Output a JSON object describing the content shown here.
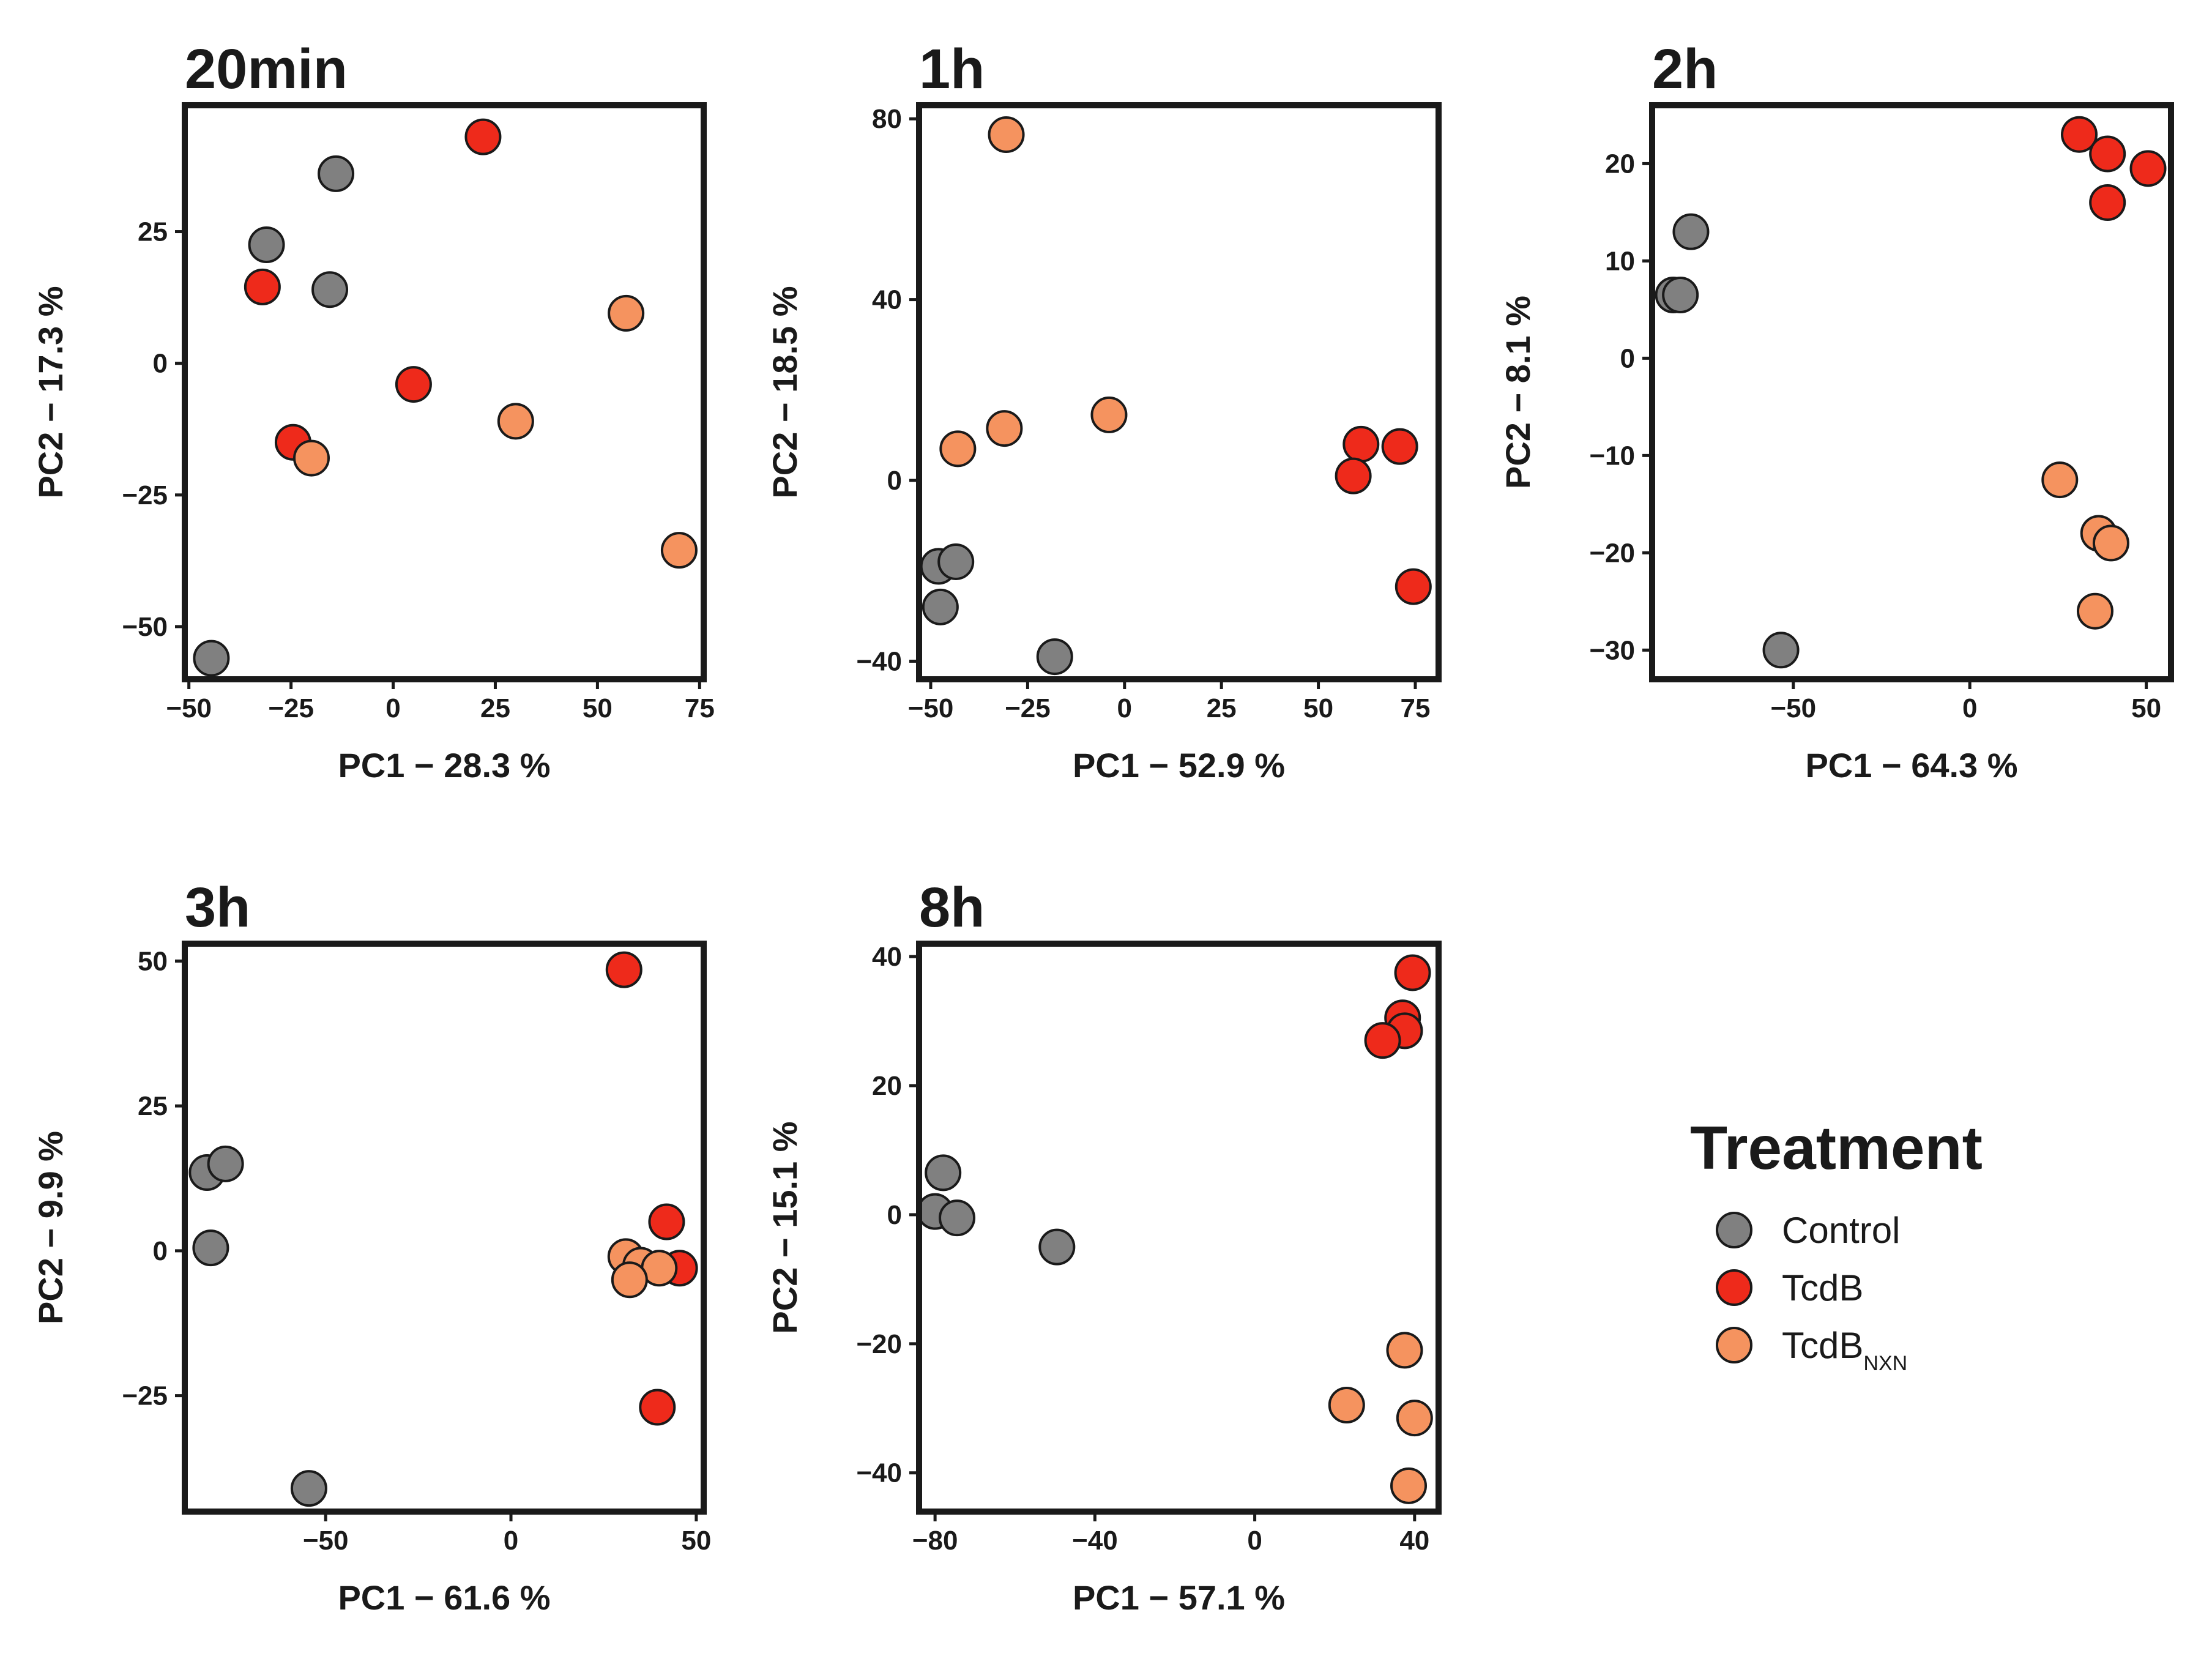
{
  "colors": {
    "Control": "#808080",
    "TcdB": "#ee2a1b",
    "TcdB_NXN": "#f5935f",
    "outline": "#1a1a1a"
  },
  "legend": {
    "title": "Treatment",
    "entries": [
      {
        "group": "Control",
        "label": "Control",
        "sub": ""
      },
      {
        "group": "TcdB",
        "label": "TcdB",
        "sub": ""
      },
      {
        "group": "TcdB_NXN",
        "label": "TcdB",
        "sub": "NXN"
      }
    ]
  },
  "chart_data": [
    {
      "type": "scatter",
      "title": "20min",
      "xlabel": "PC1 − 28.3 %",
      "ylabel": "PC2 − 17.3 %",
      "xlim": [
        -51,
        76
      ],
      "ylim": [
        -60,
        49
      ],
      "xticks": [
        -50,
        -25,
        0,
        25,
        50,
        75
      ],
      "xtick_labels": [
        "−50",
        "−25",
        "0",
        "25",
        "50",
        "75"
      ],
      "yticks": [
        -50,
        -25,
        0,
        25
      ],
      "ytick_labels": [
        "−50",
        "−25",
        "0",
        "25"
      ],
      "series": [
        {
          "name": "Control",
          "points": [
            [
              -31,
              22.5
            ],
            [
              -14,
              36
            ],
            [
              -15.5,
              14
            ],
            [
              -44.5,
              -56
            ]
          ]
        },
        {
          "name": "TcdB",
          "points": [
            [
              22,
              43
            ],
            [
              -32,
              14.5
            ],
            [
              5,
              -4
            ],
            [
              -24.5,
              -15
            ]
          ]
        },
        {
          "name": "TcdB_NXN",
          "points": [
            [
              57,
              9.5
            ],
            [
              30,
              -11
            ],
            [
              -20,
              -18
            ],
            [
              70,
              -35.5
            ]
          ]
        }
      ]
    },
    {
      "type": "scatter",
      "title": "1h",
      "xlabel": "PC1 − 52.9 %",
      "ylabel": "PC2 − 18.5 %",
      "xlim": [
        -53,
        81
      ],
      "ylim": [
        -44,
        83
      ],
      "xticks": [
        -50,
        -25,
        0,
        25,
        50,
        75
      ],
      "xtick_labels": [
        "−50",
        "−25",
        "0",
        "25",
        "50",
        "75"
      ],
      "yticks": [
        -40,
        0,
        40,
        80
      ],
      "ytick_labels": [
        "−40",
        "0",
        "40",
        "80"
      ],
      "series": [
        {
          "name": "Control",
          "points": [
            [
              -48,
              -19
            ],
            [
              -43.5,
              -18
            ],
            [
              -47.5,
              -28
            ],
            [
              -18,
              -39
            ]
          ]
        },
        {
          "name": "TcdB",
          "points": [
            [
              61,
              8
            ],
            [
              71,
              7.5
            ],
            [
              59,
              1
            ],
            [
              74.5,
              -23.5
            ]
          ]
        },
        {
          "name": "TcdB_NXN",
          "points": [
            [
              -30.5,
              76.5
            ],
            [
              -31,
              11.5
            ],
            [
              -4,
              14.5
            ],
            [
              -43,
              7
            ]
          ]
        }
      ]
    },
    {
      "type": "scatter",
      "title": "2h",
      "xlabel": "PC1 − 64.3 %",
      "ylabel": "PC2 − 8.1 %",
      "xlim": [
        -90,
        57
      ],
      "ylim": [
        -33,
        26
      ],
      "xticks": [
        -50,
        0,
        50
      ],
      "xtick_labels": [
        "−50",
        "0",
        "50"
      ],
      "yticks": [
        -30,
        -20,
        -10,
        0,
        10,
        20
      ],
      "ytick_labels": [
        "−30",
        "−20",
        "−10",
        "0",
        "10",
        "20"
      ],
      "series": [
        {
          "name": "Control",
          "points": [
            [
              -79,
              13
            ],
            [
              -84,
              6.5
            ],
            [
              -82,
              6.5
            ],
            [
              -53.5,
              -30
            ]
          ]
        },
        {
          "name": "TcdB",
          "points": [
            [
              31,
              23
            ],
            [
              39,
              21
            ],
            [
              50.5,
              19.5
            ],
            [
              39,
              16
            ]
          ]
        },
        {
          "name": "TcdB_NXN",
          "points": [
            [
              25.5,
              -12.5
            ],
            [
              36.5,
              -18
            ],
            [
              40,
              -19
            ],
            [
              35.5,
              -26
            ]
          ]
        }
      ]
    },
    {
      "type": "scatter",
      "title": "3h",
      "xlabel": "PC1 − 61.6 %",
      "ylabel": "PC2 − 9.9 %",
      "xlim": [
        -88,
        52
      ],
      "ylim": [
        -45,
        53
      ],
      "xticks": [
        -50,
        0,
        50
      ],
      "xtick_labels": [
        "−50",
        "0",
        "50"
      ],
      "yticks": [
        -25,
        0,
        25,
        50
      ],
      "ytick_labels": [
        "−25",
        "0",
        "25",
        "50"
      ],
      "series": [
        {
          "name": "Control",
          "points": [
            [
              -82,
              13.5
            ],
            [
              -77,
              15
            ],
            [
              -81,
              0.5
            ],
            [
              -54.5,
              -41
            ]
          ]
        },
        {
          "name": "TcdB",
          "points": [
            [
              30.5,
              48.5
            ],
            [
              42,
              5
            ],
            [
              45.5,
              -3
            ],
            [
              39.5,
              -27
            ]
          ]
        },
        {
          "name": "TcdB_NXN",
          "points": [
            [
              31,
              -1
            ],
            [
              35,
              -2.5
            ],
            [
              40,
              -3
            ],
            [
              32,
              -5
            ]
          ]
        }
      ]
    },
    {
      "type": "scatter",
      "title": "8h",
      "xlabel": "PC1 − 57.1 %",
      "ylabel": "PC2 − 15.1 %",
      "xlim": [
        -84,
        46
      ],
      "ylim": [
        -46,
        42
      ],
      "xticks": [
        -80,
        -40,
        0,
        40
      ],
      "xtick_labels": [
        "−80",
        "−40",
        "0",
        "40"
      ],
      "yticks": [
        -40,
        -20,
        0,
        20,
        40
      ],
      "ytick_labels": [
        "−40",
        "−20",
        "0",
        "20",
        "40"
      ],
      "series": [
        {
          "name": "Control",
          "points": [
            [
              -78,
              6.5
            ],
            [
              -80,
              0.5
            ],
            [
              -74.5,
              -0.5
            ],
            [
              -49.5,
              -5
            ]
          ]
        },
        {
          "name": "TcdB",
          "points": [
            [
              39.5,
              37.5
            ],
            [
              37,
              30.5
            ],
            [
              37.5,
              28.5
            ],
            [
              32,
              27
            ]
          ]
        },
        {
          "name": "TcdB_NXN",
          "points": [
            [
              37.5,
              -21
            ],
            [
              23,
              -29.5
            ],
            [
              40,
              -31.5
            ],
            [
              38.5,
              -42
            ]
          ]
        }
      ]
    }
  ]
}
